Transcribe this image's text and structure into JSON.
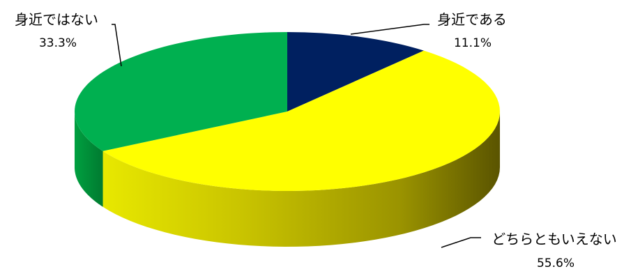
{
  "chart_data": {
    "type": "pie",
    "title": "",
    "slices": [
      {
        "label": "身近である",
        "value": 11.1,
        "percent_label": "11.1%",
        "color": "#002060"
      },
      {
        "label": "どちらともいえない",
        "value": 55.6,
        "percent_label": "55.6%",
        "color": "#FFFF00"
      },
      {
        "label": "身近ではない",
        "value": 33.3,
        "percent_label": "33.3%",
        "color": "#00B050"
      }
    ],
    "style": "3d",
    "start_angle": "12 o'clock",
    "direction": "clockwise",
    "legend": "none",
    "data_labels": "outside with leader lines"
  }
}
